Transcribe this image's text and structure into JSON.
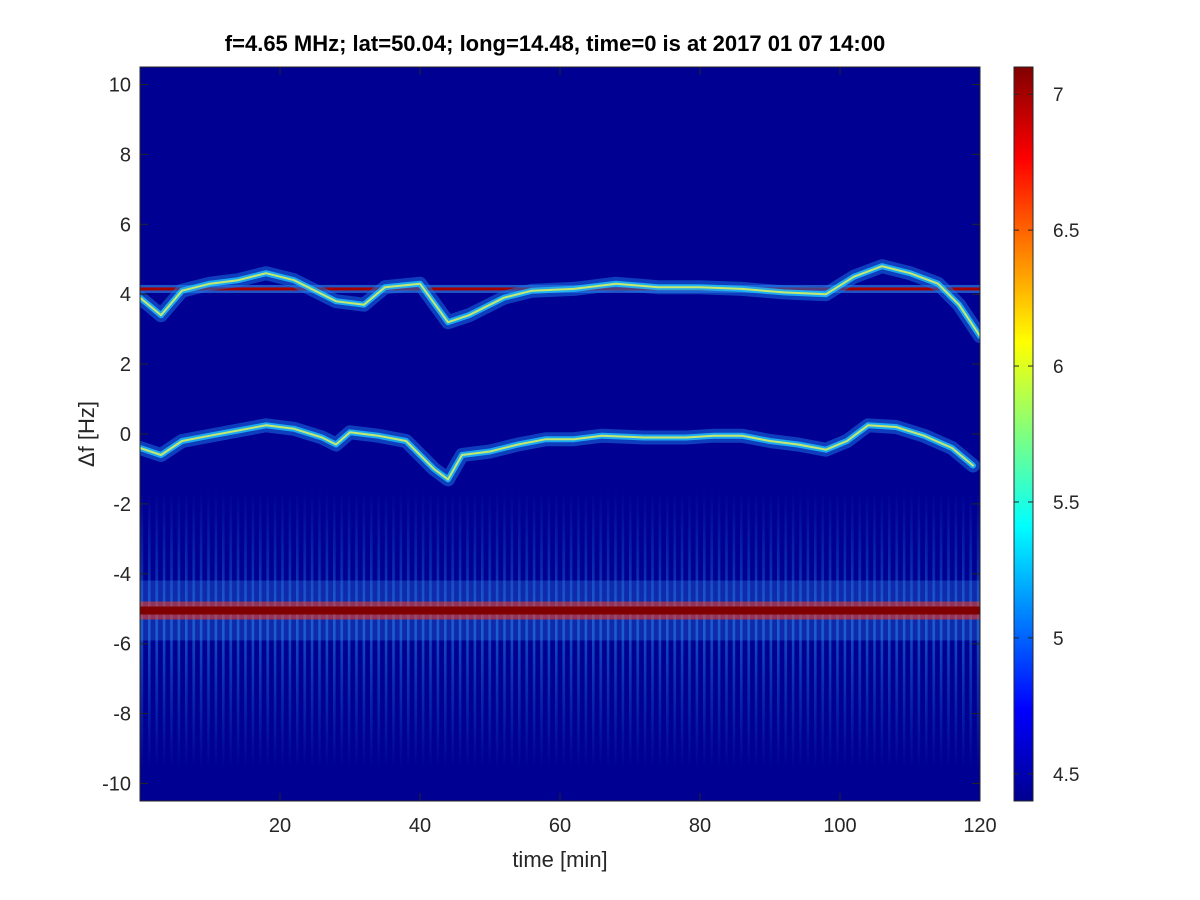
{
  "chart_data": {
    "type": "heatmap",
    "title": "f=4.65 MHz;  lat=50.04; long=14.48, time=0 is at 2017 01 07 14:00",
    "xlabel": "time [min]",
    "ylabel": "Δf [Hz]",
    "xlim": [
      0,
      120
    ],
    "ylim": [
      -10.5,
      10.5
    ],
    "x_ticks": [
      20,
      40,
      60,
      80,
      100,
      120
    ],
    "y_ticks": [
      10,
      8,
      6,
      4,
      2,
      0,
      -2,
      -4,
      -6,
      -8,
      -10
    ],
    "colormap": "jet",
    "colorbar": {
      "range": [
        4.4,
        7.1
      ],
      "ticks": [
        4.5,
        5,
        5.5,
        6,
        6.5,
        7
      ]
    },
    "background_level": 4.45,
    "features": [
      {
        "description": "steady carrier line",
        "delta_f_hz": 4.15,
        "time_range": [
          0,
          120
        ],
        "level": 7.0
      },
      {
        "description": "strong pulsed line",
        "delta_f_hz": -5.05,
        "time_range": [
          0,
          120
        ],
        "level": 7.1
      },
      {
        "description": "upper doppler trace",
        "points": [
          [
            0,
            3.9
          ],
          [
            3,
            3.4
          ],
          [
            6,
            4.1
          ],
          [
            10,
            4.3
          ],
          [
            14,
            4.4
          ],
          [
            18,
            4.6
          ],
          [
            22,
            4.4
          ],
          [
            25,
            4.1
          ],
          [
            28,
            3.8
          ],
          [
            32,
            3.7
          ],
          [
            35,
            4.2
          ],
          [
            40,
            4.3
          ],
          [
            44,
            3.2
          ],
          [
            47,
            3.4
          ],
          [
            52,
            3.9
          ],
          [
            56,
            4.1
          ],
          [
            62,
            4.15
          ],
          [
            68,
            4.3
          ],
          [
            74,
            4.2
          ],
          [
            80,
            4.2
          ],
          [
            86,
            4.15
          ],
          [
            92,
            4.05
          ],
          [
            98,
            4.0
          ],
          [
            102,
            4.5
          ],
          [
            106,
            4.8
          ],
          [
            110,
            4.6
          ],
          [
            114,
            4.3
          ],
          [
            117,
            3.7
          ],
          [
            120,
            2.8
          ]
        ]
      },
      {
        "description": "lower doppler trace",
        "points": [
          [
            0,
            -0.4
          ],
          [
            3,
            -0.6
          ],
          [
            6,
            -0.2
          ],
          [
            10,
            -0.05
          ],
          [
            14,
            0.1
          ],
          [
            18,
            0.25
          ],
          [
            22,
            0.15
          ],
          [
            26,
            -0.1
          ],
          [
            28,
            -0.3
          ],
          [
            30,
            0.05
          ],
          [
            34,
            -0.05
          ],
          [
            38,
            -0.2
          ],
          [
            42,
            -1.0
          ],
          [
            44,
            -1.3
          ],
          [
            46,
            -0.6
          ],
          [
            50,
            -0.5
          ],
          [
            54,
            -0.3
          ],
          [
            58,
            -0.15
          ],
          [
            62,
            -0.15
          ],
          [
            66,
            -0.05
          ],
          [
            72,
            -0.1
          ],
          [
            78,
            -0.1
          ],
          [
            82,
            -0.05
          ],
          [
            86,
            -0.05
          ],
          [
            90,
            -0.2
          ],
          [
            94,
            -0.3
          ],
          [
            98,
            -0.45
          ],
          [
            101,
            -0.2
          ],
          [
            104,
            0.25
          ],
          [
            108,
            0.2
          ],
          [
            112,
            -0.05
          ],
          [
            116,
            -0.4
          ],
          [
            119,
            -0.9
          ]
        ]
      }
    ]
  }
}
